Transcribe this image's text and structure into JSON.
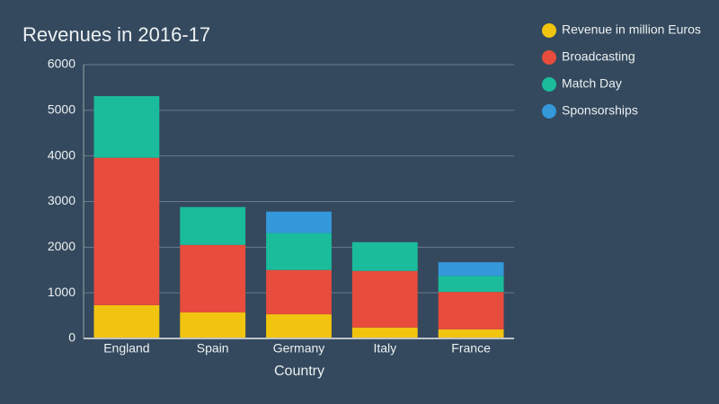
{
  "chart_data": {
    "type": "stacked_bar",
    "title": "Revenues in 2016-17",
    "x_label": "Country",
    "categories": [
      "England",
      "Spain",
      "Germany",
      "Italy",
      "France"
    ],
    "series": [
      {
        "name": "Revenue in million Euros",
        "color": "#f1c40f",
        "values": [
          730,
          570,
          530,
          240,
          200
        ]
      },
      {
        "name": "Broadcasting",
        "color": "#e74c3c",
        "values": [
          3230,
          1480,
          970,
          1240,
          820
        ]
      },
      {
        "name": "Match Day",
        "color": "#1abc9c",
        "values": [
          1350,
          830,
          810,
          630,
          350
        ]
      },
      {
        "name": "Sponsorships",
        "color": "#3498db",
        "values": [
          0,
          0,
          470,
          0,
          300
        ]
      }
    ],
    "ylim": [
      0,
      6000
    ],
    "yticks": [
      0,
      1000,
      2000,
      3000,
      4000,
      5000,
      6000
    ],
    "grid": true,
    "legend": "right"
  }
}
